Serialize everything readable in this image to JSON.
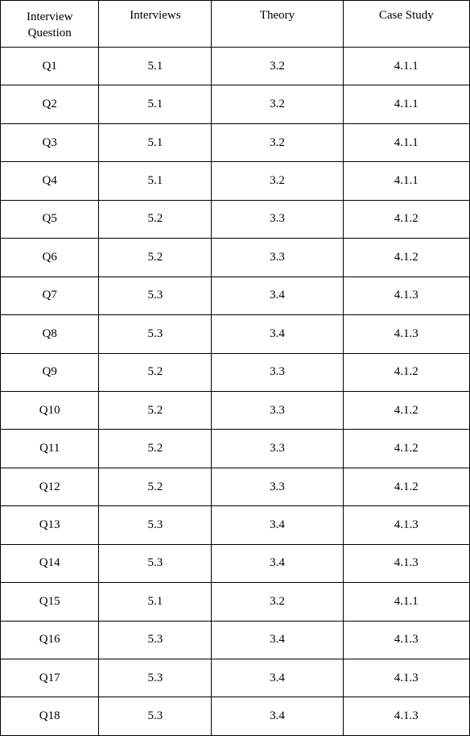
{
  "table": {
    "type": "table",
    "background_color": "#ffffff",
    "border_color": "#000000",
    "text_color": "#000000",
    "font_family": "Times New Roman",
    "font_size": 15,
    "header_row_height": 58,
    "body_row_height": 47,
    "columns": [
      {
        "label_line1": "Interview",
        "label_line2": "Question",
        "width_pct": 21
      },
      {
        "label_line1": "Interviews",
        "label_line2": "",
        "width_pct": 24
      },
      {
        "label_line1": "Theory",
        "label_line2": "",
        "width_pct": 28
      },
      {
        "label_line1": "Case Study",
        "label_line2": "",
        "width_pct": 27
      }
    ],
    "rows": [
      {
        "q": "Q1",
        "interviews": "5.1",
        "theory": "3.2",
        "case": "4.1.1"
      },
      {
        "q": "Q2",
        "interviews": "5.1",
        "theory": "3.2",
        "case": "4.1.1"
      },
      {
        "q": "Q3",
        "interviews": "5.1",
        "theory": "3.2",
        "case": "4.1.1"
      },
      {
        "q": "Q4",
        "interviews": "5.1",
        "theory": "3.2",
        "case": "4.1.1"
      },
      {
        "q": "Q5",
        "interviews": "5.2",
        "theory": "3.3",
        "case": "4.1.2"
      },
      {
        "q": "Q6",
        "interviews": "5.2",
        "theory": "3.3",
        "case": "4.1.2"
      },
      {
        "q": "Q7",
        "interviews": "5.3",
        "theory": "3.4",
        "case": "4.1.3"
      },
      {
        "q": "Q8",
        "interviews": "5.3",
        "theory": "3.4",
        "case": "4.1.3"
      },
      {
        "q": "Q9",
        "interviews": "5.2",
        "theory": "3.3",
        "case": "4.1.2"
      },
      {
        "q": "Q10",
        "interviews": "5.2",
        "theory": "3.3",
        "case": "4.1.2"
      },
      {
        "q": "Q11",
        "interviews": "5.2",
        "theory": "3.3",
        "case": "4.1.2"
      },
      {
        "q": "Q12",
        "interviews": "5.2",
        "theory": "3.3",
        "case": "4.1.2"
      },
      {
        "q": "Q13",
        "interviews": "5.3",
        "theory": "3.4",
        "case": "4.1.3"
      },
      {
        "q": "Q14",
        "interviews": "5.3",
        "theory": "3.4",
        "case": "4.1.3"
      },
      {
        "q": "Q15",
        "interviews": "5.1",
        "theory": "3.2",
        "case": "4.1.1"
      },
      {
        "q": "Q16",
        "interviews": "5.3",
        "theory": "3.4",
        "case": "4.1.3"
      },
      {
        "q": "Q17",
        "interviews": "5.3",
        "theory": "3.4",
        "case": "4.1.3"
      },
      {
        "q": "Q18",
        "interviews": "5.3",
        "theory": "3.4",
        "case": "4.1.3"
      }
    ]
  }
}
